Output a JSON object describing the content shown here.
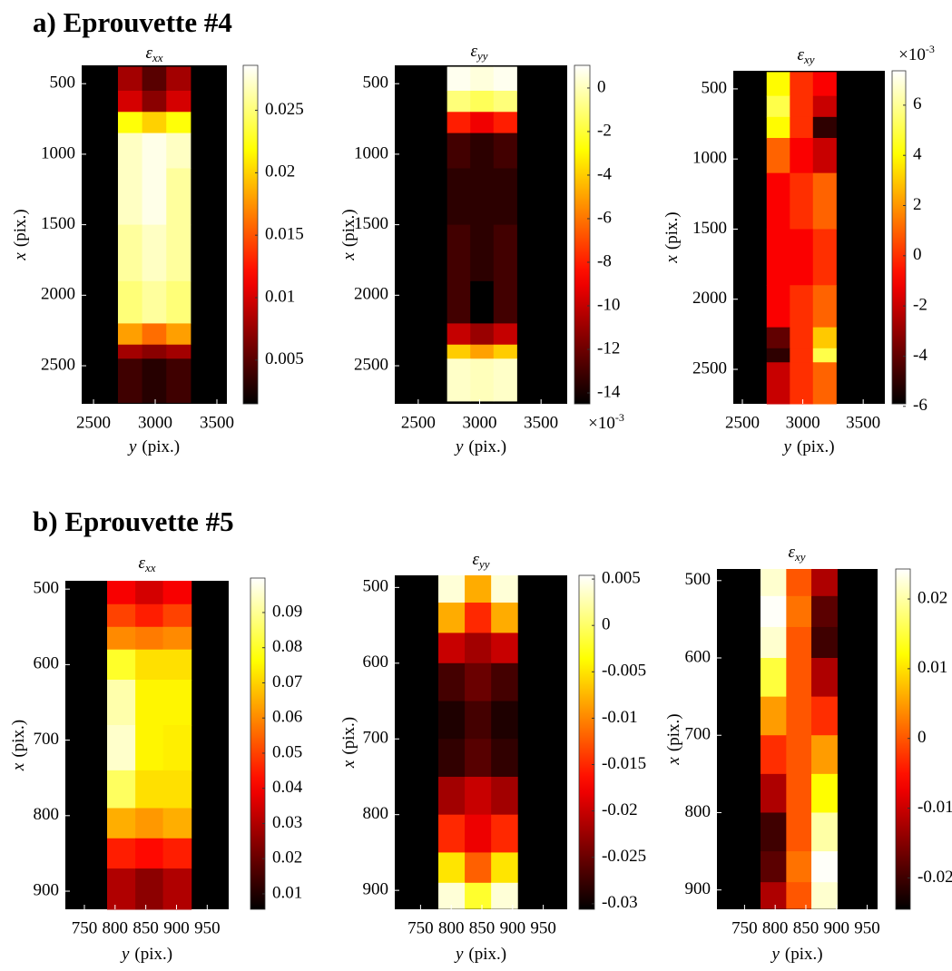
{
  "sections": [
    {
      "title": "a) Eprouvette #4"
    },
    {
      "title": "b) Eprouvette #5"
    }
  ],
  "chart_data": [
    {
      "type": "heatmap",
      "title": "ε",
      "title_subscript": "xx",
      "xlabel": {
        "var": "y",
        "unit": "(pix.)"
      },
      "ylabel": {
        "var": "x",
        "unit": "(pix.)"
      },
      "xlim": [
        2404,
        3581
      ],
      "ylim": [
        370,
        2770
      ],
      "y_reversed": true,
      "xticks": [
        2500,
        3000,
        3500
      ],
      "yticks": [
        500,
        1000,
        1500,
        2000,
        2500
      ],
      "colormap": "hot",
      "clim": [
        0.0015,
        0.0286
      ],
      "cticks": [
        0.005,
        0.01,
        0.015,
        0.02,
        0.025
      ],
      "col_edges": [
        2698,
        2894,
        3090,
        3286
      ],
      "row_edges": [
        380,
        550,
        700,
        850,
        1100,
        1500,
        1900,
        2200,
        2350,
        2450,
        2760
      ],
      "z": [
        [
          0.008,
          0.005,
          0.008
        ],
        [
          0.01,
          0.007,
          0.01
        ],
        [
          0.022,
          0.02,
          0.022
        ],
        [
          0.027,
          0.028,
          0.027
        ],
        [
          0.027,
          0.028,
          0.026
        ],
        [
          0.026,
          0.027,
          0.026
        ],
        [
          0.025,
          0.026,
          0.025
        ],
        [
          0.018,
          0.016,
          0.018
        ],
        [
          0.008,
          0.007,
          0.008
        ],
        [
          0.004,
          0.003,
          0.004
        ]
      ]
    },
    {
      "type": "heatmap",
      "title": "ε",
      "title_subscript": "yy",
      "xlabel": {
        "var": "y",
        "unit": "(pix.)"
      },
      "ylabel": {
        "var": "x",
        "unit": "(pix.)"
      },
      "xlim": [
        2309,
        3713
      ],
      "ylim": [
        370,
        2770
      ],
      "y_reversed": true,
      "xticks": [
        2500,
        3000,
        3500
      ],
      "yticks": [
        500,
        1000,
        1500,
        2000,
        2500
      ],
      "colormap": "hot",
      "clim": [
        -0.0145,
        0.00104
      ],
      "cticks": [
        {
          "value": 0,
          "label": "0"
        },
        {
          "value": -0.002,
          "label": "-2"
        },
        {
          "value": -0.004,
          "label": "-4"
        },
        {
          "value": -0.006,
          "label": "-6"
        },
        {
          "value": -0.008,
          "label": "-8"
        },
        {
          "value": -0.01,
          "label": "-10"
        },
        {
          "value": -0.012,
          "label": "-12"
        },
        {
          "value": -0.014,
          "label": "-14"
        }
      ],
      "cbar_multiplier": {
        "base": "×10",
        "exponent": "-3"
      },
      "col_edges": [
        2735,
        2924,
        3113,
        3302
      ],
      "row_edges": [
        380,
        550,
        700,
        850,
        1100,
        1500,
        1900,
        2200,
        2350,
        2450,
        2750
      ],
      "z": [
        [
          0.0008,
          0.0005,
          0.0008
        ],
        [
          -0.001,
          -0.0015,
          -0.001
        ],
        [
          -0.008,
          -0.009,
          -0.008
        ],
        [
          -0.013,
          -0.0135,
          -0.013
        ],
        [
          -0.0135,
          -0.0135,
          -0.0135
        ],
        [
          -0.013,
          -0.0135,
          -0.013
        ],
        [
          -0.013,
          -0.0145,
          -0.013
        ],
        [
          -0.01,
          -0.011,
          -0.01
        ],
        [
          -0.004,
          -0.005,
          -0.004
        ],
        [
          0.0002,
          0.0,
          0.0002
        ]
      ]
    },
    {
      "type": "heatmap",
      "title": "ε",
      "title_subscript": "xy",
      "xlabel": {
        "var": "y",
        "unit": "(pix.)"
      },
      "ylabel": {
        "var": "x",
        "unit": "(pix.)"
      },
      "xlim": [
        2425,
        3679
      ],
      "ylim": [
        371,
        2746
      ],
      "y_reversed": true,
      "xticks": [
        2500,
        3000,
        3500
      ],
      "yticks": [
        500,
        1000,
        1500,
        2000,
        2500
      ],
      "colormap": "hot",
      "clim": [
        -0.0059,
        0.00737
      ],
      "cticks": [
        {
          "value": 0.006,
          "label": "6"
        },
        {
          "value": 0.004,
          "label": "4"
        },
        {
          "value": 0.002,
          "label": "2"
        },
        {
          "value": 0,
          "label": "0"
        },
        {
          "value": -0.002,
          "label": "-2"
        },
        {
          "value": -0.004,
          "label": "-4"
        },
        {
          "value": -0.006,
          "label": "-6"
        }
      ],
      "cbar_multiplier": {
        "base": "×10",
        "exponent": "-3"
      },
      "col_edges": [
        2701,
        2893,
        3084,
        3276
      ],
      "row_edges": [
        380,
        550,
        700,
        850,
        1100,
        1500,
        1900,
        2200,
        2350,
        2450,
        2746
      ],
      "z": [
        [
          0.004,
          0.0,
          -0.001
        ],
        [
          0.005,
          0.0,
          -0.002
        ],
        [
          0.004,
          0.0,
          -0.005
        ],
        [
          0.001,
          -0.001,
          -0.002
        ],
        [
          -0.001,
          0.0,
          0.001
        ],
        [
          -0.001,
          -0.001,
          0.0
        ],
        [
          -0.001,
          0.0,
          0.001
        ],
        [
          -0.004,
          0.0,
          0.003
        ],
        [
          -0.005,
          0.0,
          0.005
        ],
        [
          -0.002,
          0.0,
          0.001
        ]
      ]
    },
    {
      "type": "heatmap",
      "title": "ε",
      "title_subscript": "xx",
      "xlabel": {
        "var": "y",
        "unit": "(pix.)"
      },
      "ylabel": {
        "var": "x",
        "unit": "(pix.)"
      },
      "xlim": [
        719,
        985
      ],
      "ylim": [
        489,
        924
      ],
      "y_reversed": true,
      "xticks": [
        750,
        800,
        850,
        900,
        950
      ],
      "yticks": [
        500,
        600,
        700,
        800,
        900
      ],
      "colormap": "hot",
      "clim": [
        0.0056,
        0.0998
      ],
      "cticks": [
        0.09,
        0.08,
        0.07,
        0.06,
        0.05,
        0.04,
        0.03,
        0.02,
        0.01
      ],
      "col_edges": [
        787,
        833,
        878,
        924
      ],
      "row_edges": [
        489,
        520,
        550,
        580,
        620,
        680,
        740,
        790,
        830,
        870,
        924
      ],
      "z": [
        [
          0.04,
          0.035,
          0.04
        ],
        [
          0.05,
          0.045,
          0.05
        ],
        [
          0.06,
          0.058,
          0.06
        ],
        [
          0.08,
          0.072,
          0.072
        ],
        [
          0.092,
          0.075,
          0.075
        ],
        [
          0.095,
          0.075,
          0.074
        ],
        [
          0.085,
          0.072,
          0.072
        ],
        [
          0.065,
          0.062,
          0.065
        ],
        [
          0.045,
          0.042,
          0.045
        ],
        [
          0.03,
          0.025,
          0.03
        ]
      ]
    },
    {
      "type": "heatmap",
      "title": "ε",
      "title_subscript": "yy",
      "xlabel": {
        "var": "y",
        "unit": "(pix.)"
      },
      "ylabel": {
        "var": "x",
        "unit": "(pix.)"
      },
      "xlim": [
        708,
        989
      ],
      "ylim": [
        484,
        925
      ],
      "y_reversed": true,
      "xticks": [
        750,
        800,
        850,
        900,
        950
      ],
      "yticks": [
        500,
        600,
        700,
        800,
        900
      ],
      "colormap": "hot",
      "clim": [
        -0.0306,
        0.0054
      ],
      "cticks": [
        0.005,
        0,
        -0.005,
        -0.01,
        -0.015,
        -0.02,
        -0.025,
        -0.03
      ],
      "col_edges": [
        779,
        822,
        865,
        908
      ],
      "row_edges": [
        484,
        520,
        560,
        600,
        650,
        700,
        750,
        800,
        850,
        890,
        924
      ],
      "z": [
        [
          0.004,
          -0.008,
          0.004
        ],
        [
          -0.008,
          -0.015,
          -0.008
        ],
        [
          -0.02,
          -0.022,
          -0.02
        ],
        [
          -0.027,
          -0.025,
          -0.027
        ],
        [
          -0.029,
          -0.027,
          -0.029
        ],
        [
          -0.028,
          -0.026,
          -0.028
        ],
        [
          -0.022,
          -0.02,
          -0.022
        ],
        [
          -0.015,
          -0.018,
          -0.015
        ],
        [
          -0.005,
          -0.012,
          -0.005
        ],
        [
          0.004,
          -0.002,
          0.004
        ]
      ]
    },
    {
      "type": "heatmap",
      "title": "ε",
      "title_subscript": "xy",
      "xlabel": {
        "var": "y",
        "unit": "(pix.)"
      },
      "ylabel": {
        "var": "x",
        "unit": "(pix.)"
      },
      "xlim": [
        705,
        967
      ],
      "ylim": [
        485,
        925
      ],
      "y_reversed": true,
      "xticks": [
        750,
        800,
        850,
        900,
        950
      ],
      "yticks": [
        500,
        600,
        700,
        800,
        900
      ],
      "colormap": "hot",
      "clim": [
        -0.0245,
        0.0243
      ],
      "cticks": [
        0.02,
        0.01,
        0,
        -0.01,
        -0.02
      ],
      "col_edges": [
        776,
        818,
        859,
        901
      ],
      "row_edges": [
        485,
        520,
        560,
        600,
        650,
        700,
        750,
        800,
        850,
        890,
        924
      ],
      "z": [
        [
          0.022,
          0.0,
          -0.012
        ],
        [
          0.024,
          0.002,
          -0.018
        ],
        [
          0.022,
          0.0,
          -0.02
        ],
        [
          0.015,
          0.0,
          -0.012
        ],
        [
          0.005,
          0.0,
          -0.003
        ],
        [
          -0.003,
          0.0,
          0.005
        ],
        [
          -0.012,
          0.0,
          0.012
        ],
        [
          -0.02,
          0.0,
          0.02
        ],
        [
          -0.018,
          0.002,
          0.024
        ],
        [
          -0.012,
          0.0,
          0.022
        ]
      ]
    }
  ]
}
